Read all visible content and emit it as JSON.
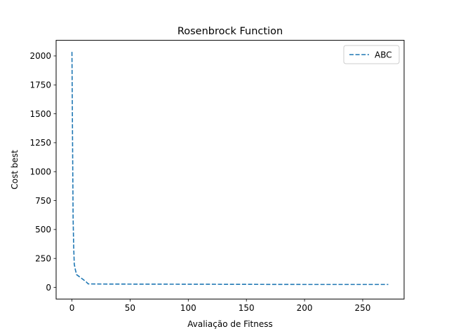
{
  "chart_data": {
    "type": "line",
    "title": "Rosenbrock Function",
    "xlabel": "Avaliação de Fitness",
    "ylabel": "Cost best",
    "xlim": [
      -13.6,
      285.6
    ],
    "ylim": [
      -101,
      2135
    ],
    "xticks": [
      0,
      50,
      100,
      150,
      200,
      250
    ],
    "yticks": [
      0,
      250,
      500,
      750,
      1000,
      1250,
      1500,
      1750,
      2000
    ],
    "grid": false,
    "legend_position": "top-right",
    "series": [
      {
        "name": "ABC",
        "color": "#1f77b4",
        "linestyle": "dashed",
        "x": [
          0,
          0.5,
          1,
          1.5,
          2,
          3,
          4,
          6,
          8,
          10,
          12,
          14,
          20,
          50,
          100,
          150,
          200,
          250,
          272
        ],
        "y": [
          2035,
          1300,
          600,
          350,
          200,
          150,
          110,
          95,
          80,
          65,
          50,
          30,
          29,
          28,
          27,
          26,
          25,
          25,
          25
        ]
      }
    ]
  }
}
